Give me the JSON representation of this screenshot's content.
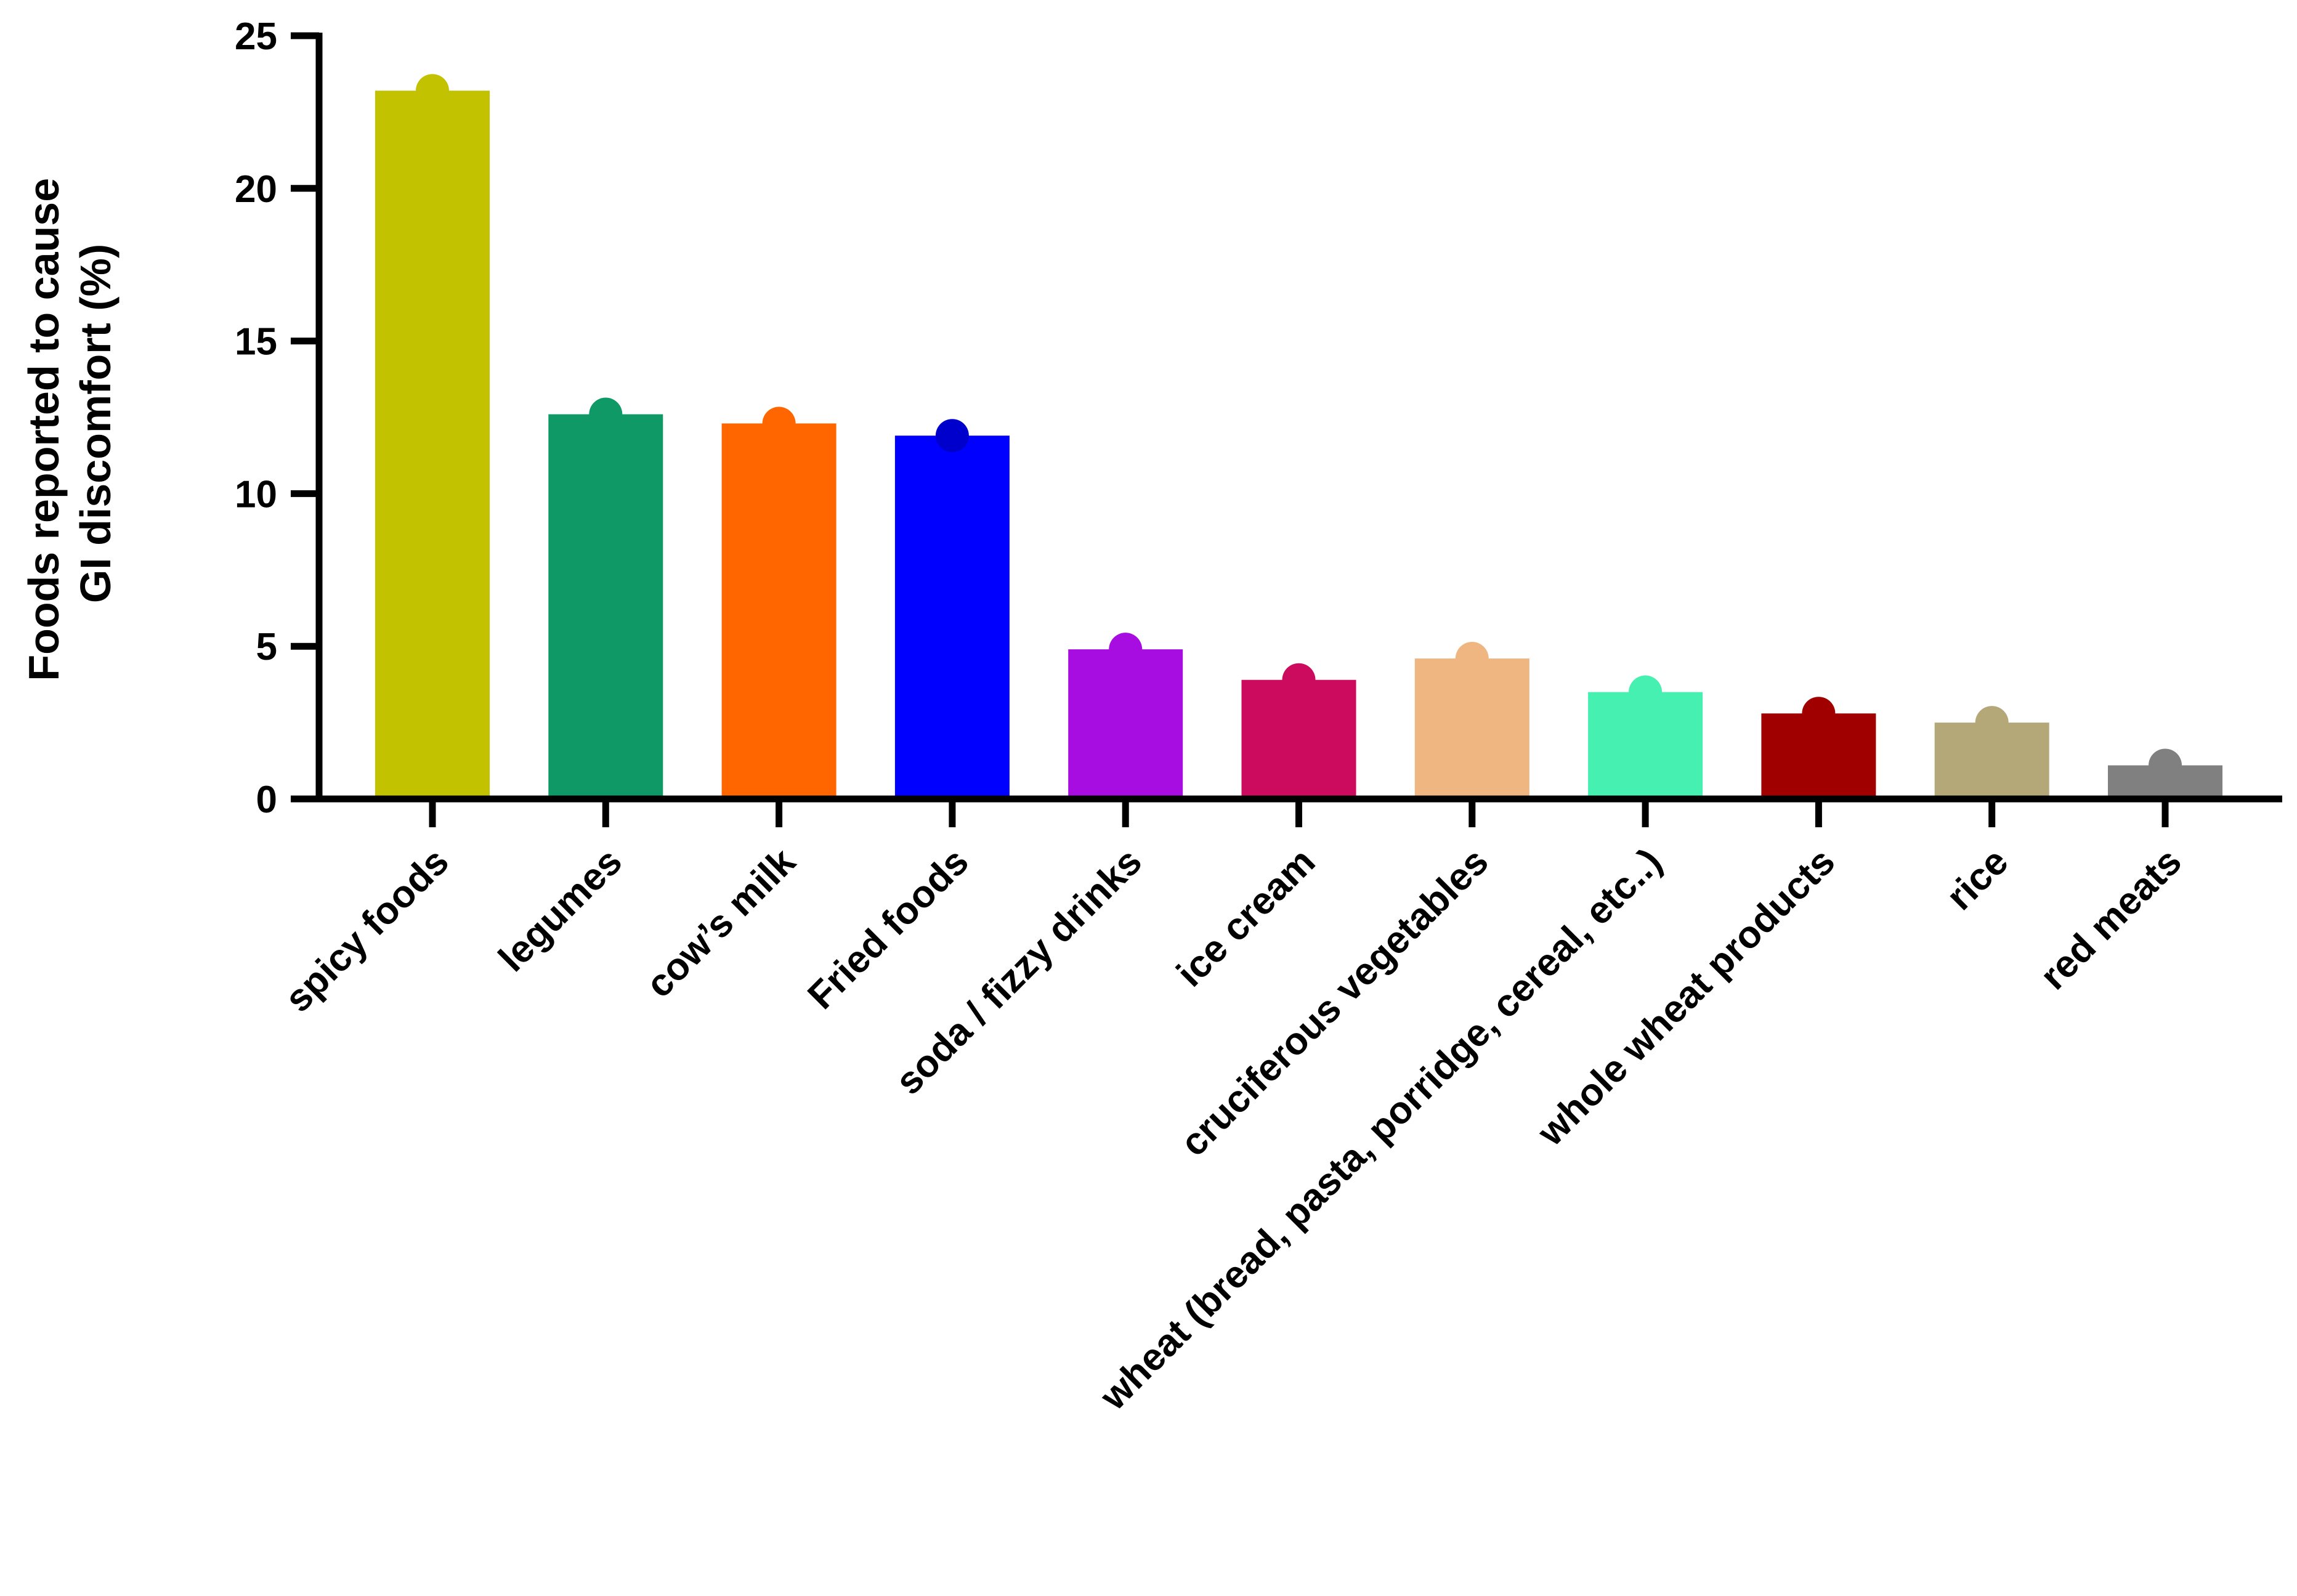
{
  "chart_data": {
    "type": "bar",
    "title": "",
    "xlabel": "",
    "ylabel_lines": [
      "Foods reported to cause",
      "GI discomfort (%)"
    ],
    "ylim": [
      0,
      25
    ],
    "yticks": [
      0,
      5,
      10,
      15,
      20,
      25
    ],
    "grid": false,
    "legend": "none",
    "categories": [
      "spicy foods",
      "legumes",
      "cow’s milk",
      "Fried foods",
      "soda / fizzy drinks",
      "ice cream",
      "cruciferous vegetables",
      "wheat (bread, pasta, porridge, cereal, etc..)",
      "whole wheat products",
      "rice",
      "red meats"
    ],
    "values": [
      23.2,
      12.6,
      12.3,
      11.9,
      4.9,
      3.9,
      4.6,
      3.5,
      2.8,
      2.5,
      1.1
    ],
    "colors": [
      "#c2c200",
      "#0e9966",
      "#ff6600",
      "#0000ff",
      "#a70ce0",
      "#cc0a5e",
      "#f0b682",
      "#45f0b0",
      "#a00000",
      "#b4a878",
      "#808080"
    ],
    "point_colors": [
      "#c2c200",
      "#0e9966",
      "#ff6600",
      "#0000cc",
      "#a70ce0",
      "#cc0a5e",
      "#f0b682",
      "#45f0b0",
      "#a00000",
      "#b4a878",
      "#808080"
    ]
  }
}
